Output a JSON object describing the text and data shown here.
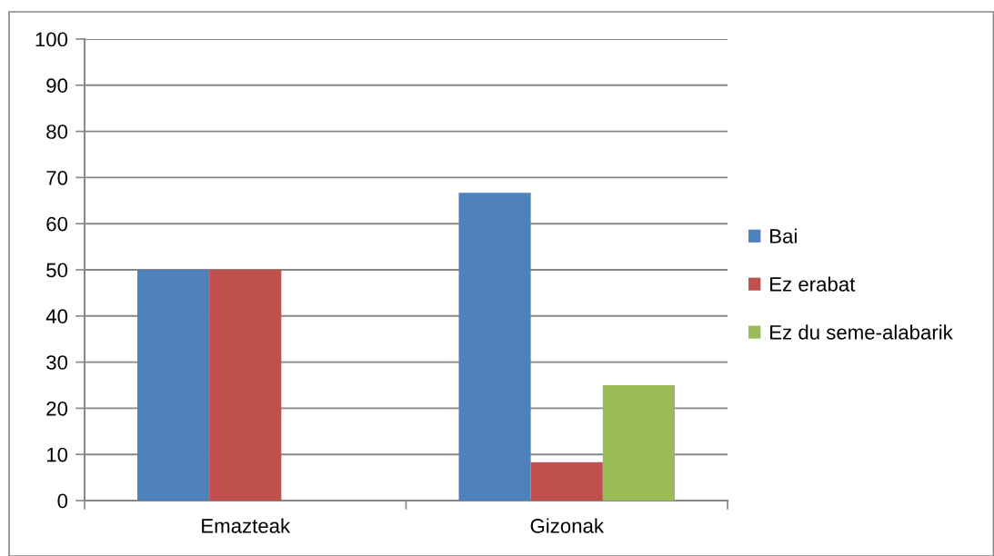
{
  "chart_data": {
    "type": "bar",
    "categories": [
      "Emazteak",
      "Gizonak"
    ],
    "series": [
      {
        "name": "Bai",
        "color": "#4f81bd",
        "values": [
          50,
          66.7
        ]
      },
      {
        "name": "Ez erabat",
        "color": "#c0504d",
        "values": [
          50,
          8.3
        ]
      },
      {
        "name": "Ez du seme-alabarik",
        "color": "#9bbb59",
        "values": [
          0,
          25
        ]
      }
    ],
    "ylim": [
      0,
      100
    ],
    "yticks": [
      0,
      10,
      20,
      30,
      40,
      50,
      60,
      70,
      80,
      90,
      100
    ],
    "grid": "y",
    "legend": "right"
  }
}
